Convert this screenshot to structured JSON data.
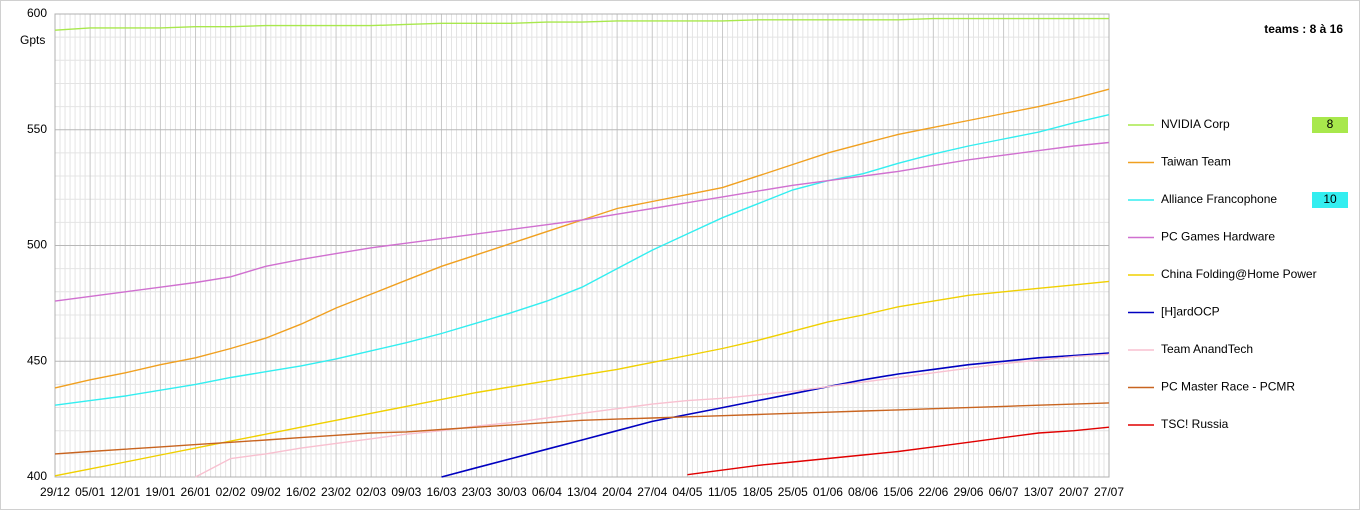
{
  "chart_data": {
    "type": "line",
    "ylabel": "Gpts",
    "annotation": "teams : 8 à 16",
    "categories": [
      "29/12",
      "05/01",
      "12/01",
      "19/01",
      "26/01",
      "02/02",
      "09/02",
      "16/02",
      "23/02",
      "02/03",
      "09/03",
      "16/03",
      "23/03",
      "30/03",
      "06/04",
      "13/04",
      "20/04",
      "27/04",
      "04/05",
      "11/05",
      "18/05",
      "25/05",
      "01/06",
      "08/06",
      "15/06",
      "22/06",
      "29/06",
      "06/07",
      "13/07",
      "20/07",
      "27/07"
    ],
    "ylim": [
      400,
      600
    ],
    "yticks": [
      400,
      450,
      500,
      550,
      600
    ],
    "grid": true,
    "legend": "right",
    "series": [
      {
        "name": "NVIDIA Corp",
        "color": "#a8e84c",
        "badge": "8",
        "values": [
          593,
          594,
          594,
          594,
          594.5,
          594.5,
          595,
          595,
          595,
          595,
          595.5,
          596,
          596,
          596,
          596.5,
          596.5,
          597,
          597,
          597,
          597,
          597.5,
          597.5,
          597.5,
          597.5,
          597.5,
          598,
          598,
          598,
          598,
          598,
          598
        ]
      },
      {
        "name": "Taiwan Team",
        "color": "#f0a020",
        "values": [
          438.5,
          442,
          445,
          448.5,
          451.5,
          455.5,
          460,
          466,
          473,
          479,
          485,
          491,
          496,
          501,
          506,
          511,
          516,
          519,
          522,
          525,
          530,
          535,
          540,
          544,
          548,
          551,
          554,
          557,
          560,
          563.5,
          567.5
        ]
      },
      {
        "name": "Alliance Francophone",
        "color": "#33eef0",
        "badge": "10",
        "values": [
          431,
          433,
          435,
          437.5,
          440,
          443,
          445.5,
          448,
          451,
          454.5,
          458,
          462,
          466.5,
          471,
          476,
          482,
          490,
          498,
          505,
          512,
          518,
          524,
          528,
          531,
          535.5,
          539.5,
          543,
          546,
          549,
          553,
          556.5
        ]
      },
      {
        "name": "PC Games Hardware",
        "color": "#d070d0",
        "values": [
          476,
          478,
          480,
          482,
          484,
          486.5,
          491,
          494,
          496.5,
          499,
          501,
          503,
          505,
          507,
          509,
          511,
          513.5,
          516,
          518.5,
          521,
          523.5,
          526,
          528,
          530,
          532,
          534.5,
          537,
          539,
          541,
          543,
          544.5
        ]
      },
      {
        "name": "China Folding@Home Power",
        "color": "#f0d000",
        "values": [
          400.5,
          403.5,
          406.5,
          409.5,
          412.5,
          415.5,
          418.5,
          421.5,
          424.5,
          427.5,
          430.5,
          433.5,
          436.5,
          439,
          441.5,
          444,
          446.5,
          449.5,
          452.5,
          455.5,
          459,
          463,
          467,
          470,
          473.5,
          476,
          478.5,
          480,
          481.5,
          483,
          484.5
        ]
      },
      {
        "name": "[H]ardOCP",
        "color": "#0000c0",
        "values": [
          null,
          null,
          null,
          null,
          null,
          null,
          null,
          null,
          null,
          null,
          null,
          400,
          404,
          408,
          412,
          416,
          420,
          424,
          427,
          430,
          433,
          436,
          439,
          442,
          444.5,
          446.5,
          448.5,
          450,
          451.5,
          452.5,
          453.5
        ]
      },
      {
        "name": "Team AnandTech",
        "color": "#f8c0d0",
        "values": [
          null,
          null,
          null,
          null,
          400,
          408,
          410,
          412.5,
          414.5,
          416.5,
          418.5,
          420,
          422,
          423.5,
          425.5,
          427.5,
          429.5,
          431.5,
          433,
          434,
          435.5,
          437,
          439,
          441,
          443,
          445,
          447,
          449,
          450.5,
          452,
          453
        ]
      },
      {
        "name": "PC Master Race - PCMR",
        "color": "#c86420",
        "values": [
          410,
          411,
          412,
          413,
          414,
          415,
          416,
          417,
          418,
          419,
          419.5,
          420.5,
          421.5,
          422.5,
          423.5,
          424.5,
          425,
          425.5,
          426,
          426.5,
          427,
          427.5,
          428,
          428.5,
          429,
          429.5,
          430,
          430.5,
          431,
          431.5,
          432
        ]
      },
      {
        "name": "TSC! Russia",
        "color": "#e00000",
        "values": [
          null,
          null,
          null,
          null,
          null,
          null,
          null,
          null,
          null,
          null,
          null,
          null,
          null,
          null,
          null,
          null,
          null,
          null,
          401,
          403,
          405,
          406.5,
          408,
          409.5,
          411,
          413,
          415,
          417,
          419,
          420,
          421.5
        ]
      }
    ]
  }
}
